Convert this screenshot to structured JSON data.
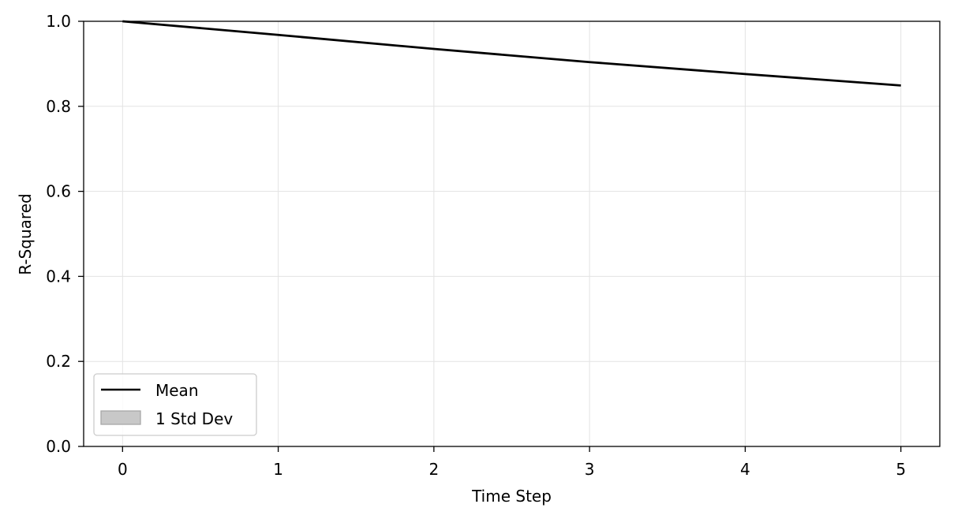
{
  "chart_data": {
    "type": "line",
    "title": "",
    "xlabel": "Time Step",
    "ylabel": "R-Squared",
    "xlim": [
      -0.25,
      5.25
    ],
    "ylim": [
      0.0,
      1.0
    ],
    "x_ticks": [
      0,
      1,
      2,
      3,
      4,
      5
    ],
    "y_ticks": [
      0.0,
      0.2,
      0.4,
      0.6,
      0.8,
      1.0
    ],
    "x_tick_labels": [
      "0",
      "1",
      "2",
      "3",
      "4",
      "5"
    ],
    "y_tick_labels": [
      "0.0",
      "0.2",
      "0.4",
      "0.6",
      "0.8",
      "1.0"
    ],
    "grid": true,
    "legend_position": "lower-left",
    "legend": {
      "mean_label": "Mean",
      "band_label": "1 Std Dev"
    },
    "series": [
      {
        "name": "Mean",
        "color": "#000000",
        "x": [
          0,
          1,
          2,
          3,
          4,
          5
        ],
        "y": [
          1.0,
          0.968,
          0.935,
          0.904,
          0.876,
          0.849
        ]
      }
    ],
    "band": {
      "name": "1 Std Dev",
      "color": "#c8c8c8",
      "x": [
        0,
        1,
        2,
        3,
        4,
        5
      ],
      "lower": [
        1.0,
        0.968,
        0.935,
        0.904,
        0.876,
        0.849
      ],
      "upper": [
        1.0,
        0.968,
        0.935,
        0.904,
        0.876,
        0.849
      ]
    }
  }
}
